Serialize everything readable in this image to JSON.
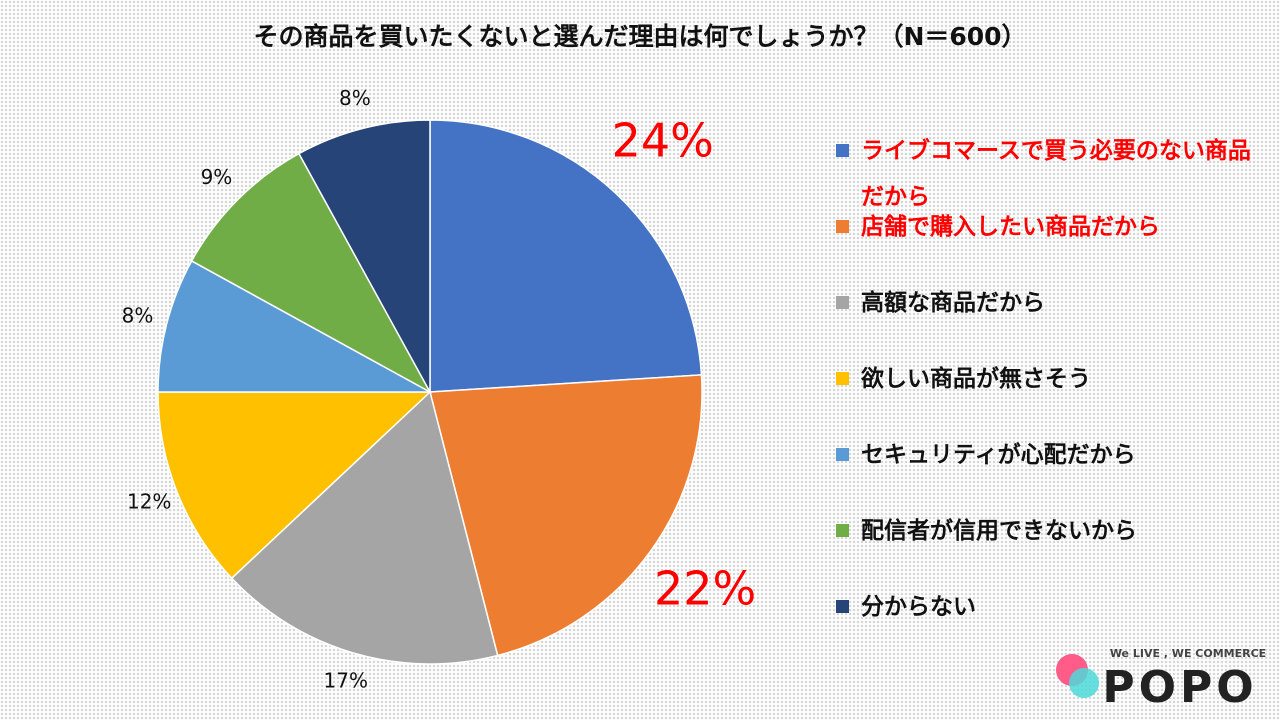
{
  "chart_data": {
    "type": "pie",
    "title": "その商品を買いたくないと選んだ理由は何でしょうか？（N＝600）",
    "categories": [
      "ライブコマースで買う必要のない商品だから",
      "店舗で購入したい商品だから",
      "高額な商品だから",
      "欲しい商品が無さそう",
      "セキュリティが心配だから",
      "配信者が信用できないから",
      "分からない"
    ],
    "values": [
      24,
      22,
      17,
      12,
      8,
      9,
      8
    ],
    "value_labels": [
      "24%",
      "22%",
      "17%",
      "12%",
      "8%",
      "9%",
      "8%"
    ],
    "colors": [
      "#4472c4",
      "#ed7d31",
      "#a5a5a5",
      "#ffc000",
      "#5b9bd5",
      "#70ad47",
      "#264478"
    ],
    "highlight": [
      true,
      true,
      false,
      false,
      false,
      false,
      false
    ],
    "highlight_color": "#ff0000",
    "legend": "right"
  },
  "logo": {
    "tagline": "We LIVE , WE COMMERCE",
    "name": "POPO"
  }
}
